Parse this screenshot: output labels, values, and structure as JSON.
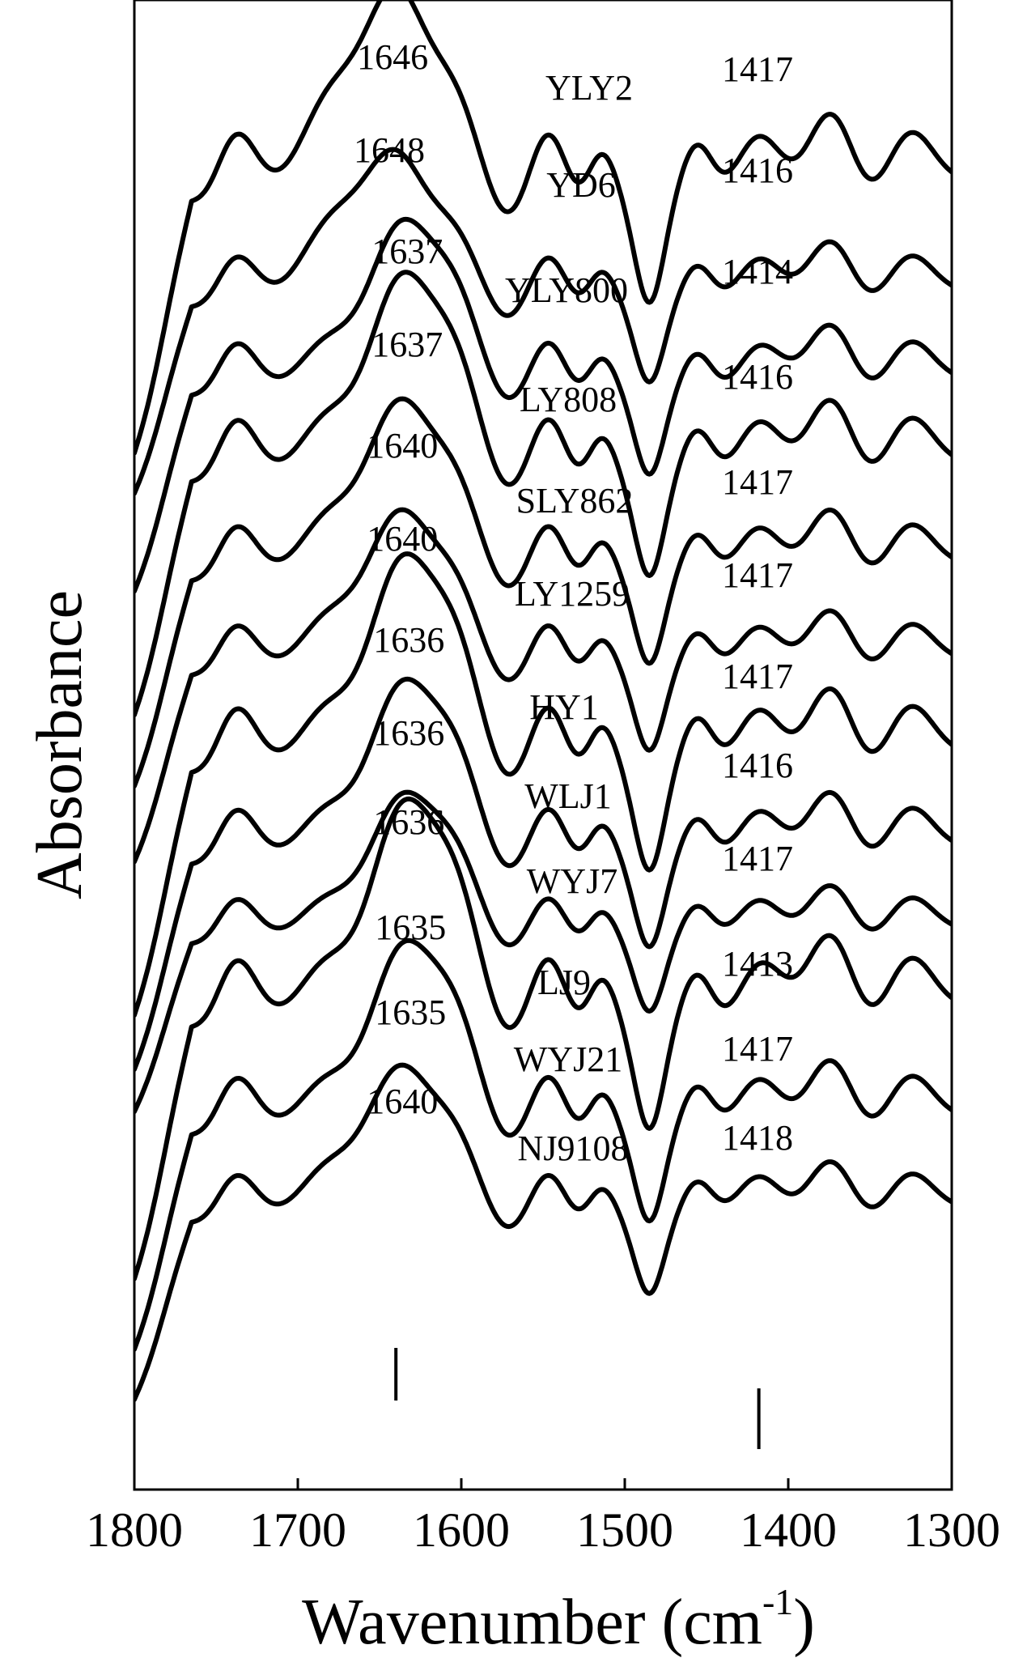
{
  "chart_data": {
    "type": "line",
    "title": "",
    "xlabel": "Wavenumber (cm",
    "xlabel_sup": "-1",
    "xlabel_close": ")",
    "ylabel": "Absorbance",
    "xlim": [
      1800,
      1300
    ],
    "x_reversed": true,
    "xticks": [
      1800,
      1700,
      1600,
      1500,
      1400,
      1300
    ],
    "grid": false,
    "legend": "none",
    "series": [
      {
        "name": "YLY2",
        "amide1_peak": 1646,
        "amide3_peak": 1417
      },
      {
        "name": "YD6",
        "amide1_peak": 1648,
        "amide3_peak": 1416
      },
      {
        "name": "YLY800",
        "amide1_peak": 1637,
        "amide3_peak": 1414
      },
      {
        "name": "LY808",
        "amide1_peak": 1637,
        "amide3_peak": 1416
      },
      {
        "name": "SLY862",
        "amide1_peak": 1640,
        "amide3_peak": 1417
      },
      {
        "name": "LY1259",
        "amide1_peak": 1640,
        "amide3_peak": 1417
      },
      {
        "name": "HY1",
        "amide1_peak": 1636,
        "amide3_peak": 1417
      },
      {
        "name": "WLJ1",
        "amide1_peak": 1636,
        "amide3_peak": 1416
      },
      {
        "name": "WYJ7",
        "amide1_peak": 1636,
        "amide3_peak": 1417
      },
      {
        "name": "LJ9",
        "amide1_peak": 1635,
        "amide3_peak": 1413
      },
      {
        "name": "WYJ21",
        "amide1_peak": 1635,
        "amide3_peak": 1417
      },
      {
        "name": "NJ9108",
        "amide1_peak": 1640,
        "amide3_peak": 1418
      }
    ],
    "markers": [
      1640,
      1418
    ]
  }
}
